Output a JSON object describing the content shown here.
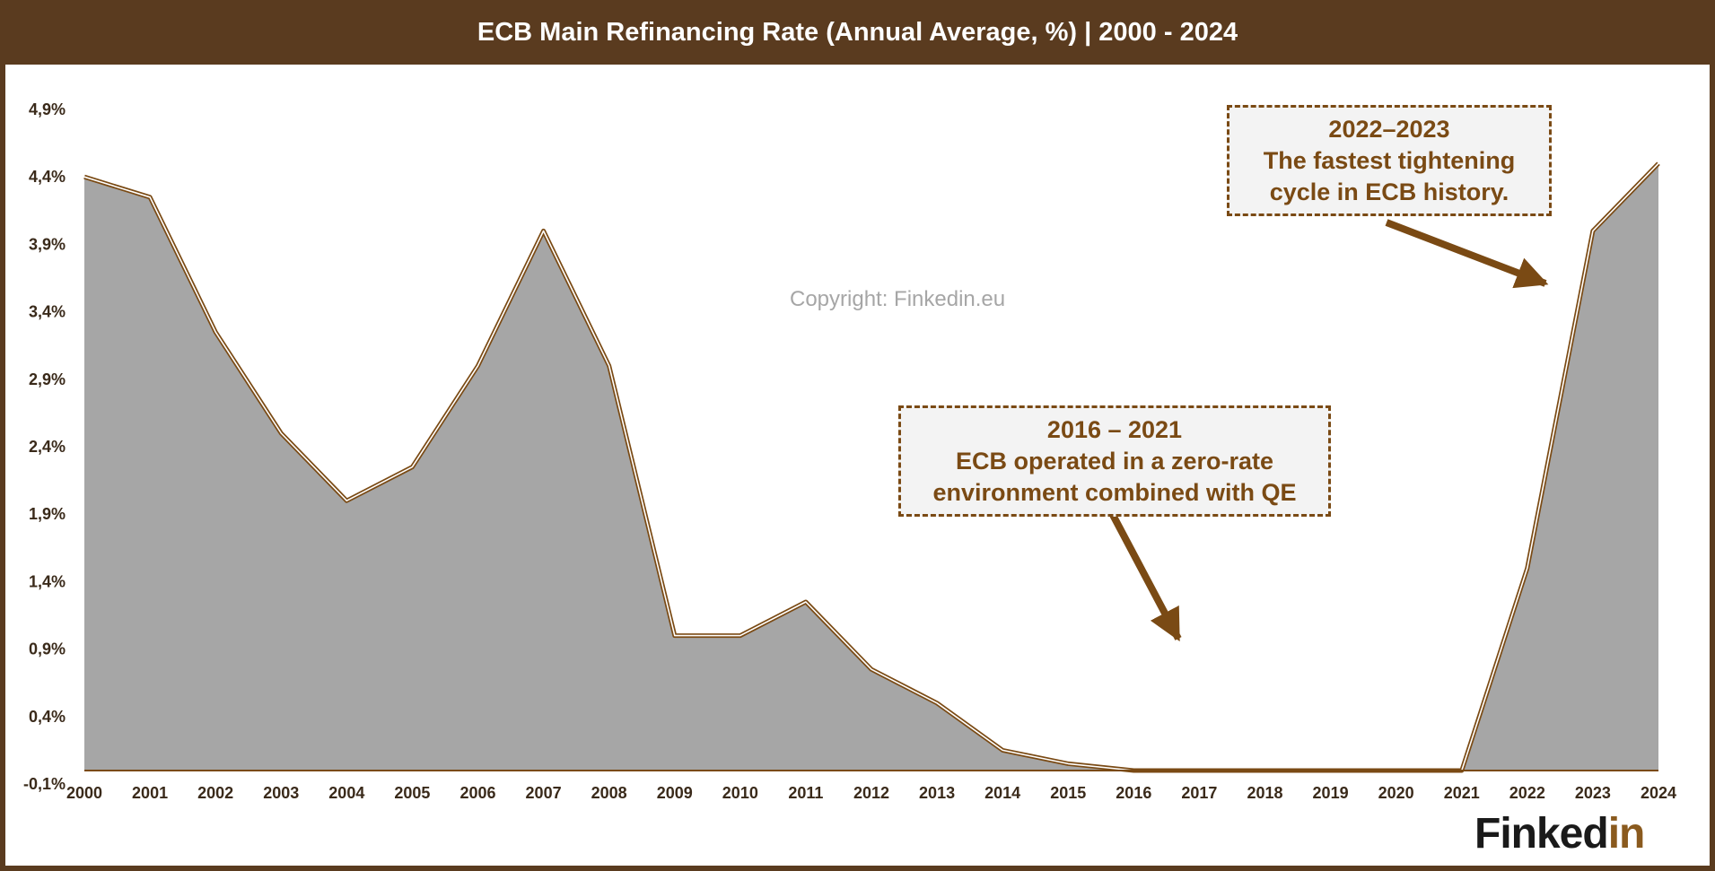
{
  "header": {
    "title": "ECB Main Refinancing Rate (Annual Average, %) | 2000 - 2024"
  },
  "chart_data": {
    "type": "area",
    "title": "ECB Main Refinancing Rate (Annual Average, %) | 2000 - 2024",
    "x": [
      "2000",
      "2001",
      "2002",
      "2003",
      "2004",
      "2005",
      "2006",
      "2007",
      "2008",
      "2009",
      "2010",
      "2011",
      "2012",
      "2013",
      "2014",
      "2015",
      "2016",
      "2017",
      "2018",
      "2019",
      "2020",
      "2021",
      "2022",
      "2023",
      "2024"
    ],
    "series": [
      {
        "values": [
          4.4,
          4.25,
          3.25,
          2.5,
          2.0,
          2.25,
          3.0,
          4.0,
          3.0,
          1.0,
          1.0,
          1.25,
          0.75,
          0.5,
          0.15,
          0.05,
          0.0,
          0.0,
          0.0,
          0.0,
          0.0,
          0.0,
          1.5,
          4.0,
          4.5
        ]
      }
    ],
    "y_ticks": [
      "-0,1%",
      "0,4%",
      "0,9%",
      "1,4%",
      "1,9%",
      "2,4%",
      "2,9%",
      "3,4%",
      "3,9%",
      "4,4%",
      "4,9%"
    ],
    "y_tick_values": [
      -0.1,
      0.4,
      0.9,
      1.4,
      1.9,
      2.4,
      2.9,
      3.4,
      3.9,
      4.4,
      4.9
    ],
    "ylim": [
      -0.1,
      4.9
    ],
    "xlabel": "",
    "ylabel": "",
    "grid": false,
    "fill_color": "#a6a6a6",
    "line_color": "#7a4a14",
    "annotations": [
      {
        "line1": "2022–2023",
        "line2": "The fastest tightening",
        "line3": "cycle in ECB history."
      },
      {
        "line1": "2016 – 2021",
        "line2": "ECB operated in a zero-rate",
        "line3": "environment combined with QE"
      }
    ]
  },
  "watermark": "Copyright: Finkedin.eu",
  "logo": {
    "part1": "Finked",
    "part2": "in"
  },
  "colors": {
    "frame": "#5a3b1f",
    "accent": "#7a4a14"
  }
}
